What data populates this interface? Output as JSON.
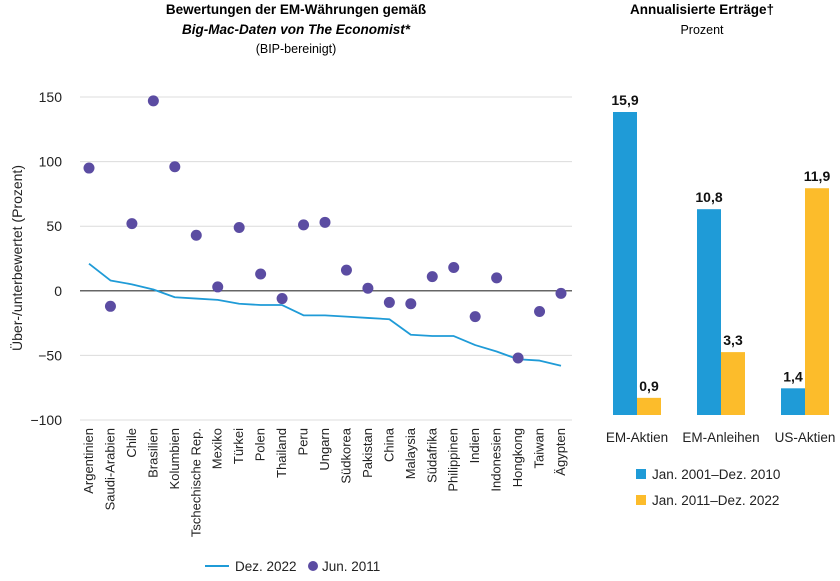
{
  "chart_data": [
    {
      "type": "line",
      "title": "Bewertungen der EM-Währungen gemäß",
      "subtitle": "Big-Mac-Daten von The Economist*",
      "note": "(BIP-bereinigt)",
      "ylabel": "Über-/unterbewertet (Prozent)",
      "ylim": [
        -100,
        150
      ],
      "yticks": [
        150,
        100,
        50,
        0,
        -50,
        -100
      ],
      "ytick_labels": [
        "150",
        "100",
        "50",
        "0",
        "−50",
        "−100"
      ],
      "grid": true,
      "legend_position": "bottom",
      "categories": [
        "Argentinien",
        "Saudi-Arabien",
        "Chile",
        "Brasilien",
        "Kolumbien",
        "Tschechische Rep.",
        "Mexiko",
        "Türkei",
        "Polen",
        "Thailand",
        "Peru",
        "Ungarn",
        "Südkorea",
        "Pakistan",
        "China",
        "Malaysia",
        "Südafrika",
        "Philippinen",
        "Indien",
        "Indonesien",
        "Hongkong",
        "Taiwan",
        "Ägypten"
      ],
      "series": [
        {
          "name": "Dez. 2022",
          "type": "line",
          "color": "#1f9bd7",
          "values": [
            21,
            8,
            5,
            1,
            -5,
            -6,
            -7,
            -10,
            -11,
            -11,
            -19,
            -19,
            -20,
            -21,
            -22,
            -34,
            -35,
            -35,
            -42,
            -47,
            -53,
            -54,
            -58
          ]
        },
        {
          "name": "Jun. 2011",
          "type": "scatter",
          "color": "#5b4ca2",
          "values": [
            95,
            -12,
            52,
            147,
            96,
            43,
            3,
            49,
            13,
            -6,
            51,
            53,
            16,
            2,
            -9,
            -10,
            11,
            18,
            -20,
            10,
            -52,
            -16,
            -2
          ]
        }
      ]
    },
    {
      "type": "bar",
      "title": "Annualisierte Erträge†",
      "subtitle": "Prozent",
      "categories": [
        "EM-Aktien",
        "EM-Anleihen",
        "US-Aktien"
      ],
      "ylim": [
        0,
        17
      ],
      "legend_position": "bottom",
      "series": [
        {
          "name": "Jan. 2001–Dez. 2010",
          "color": "#1f9bd7",
          "values": [
            15.9,
            10.8,
            1.4
          ],
          "labels": [
            "15,9",
            "10,8",
            "1,4"
          ]
        },
        {
          "name": "Jan. 2011–Dez. 2022",
          "color": "#fcbc2b",
          "values": [
            0.9,
            3.3,
            11.9
          ],
          "labels": [
            "0,9",
            "3,3",
            "11,9"
          ]
        }
      ]
    }
  ]
}
